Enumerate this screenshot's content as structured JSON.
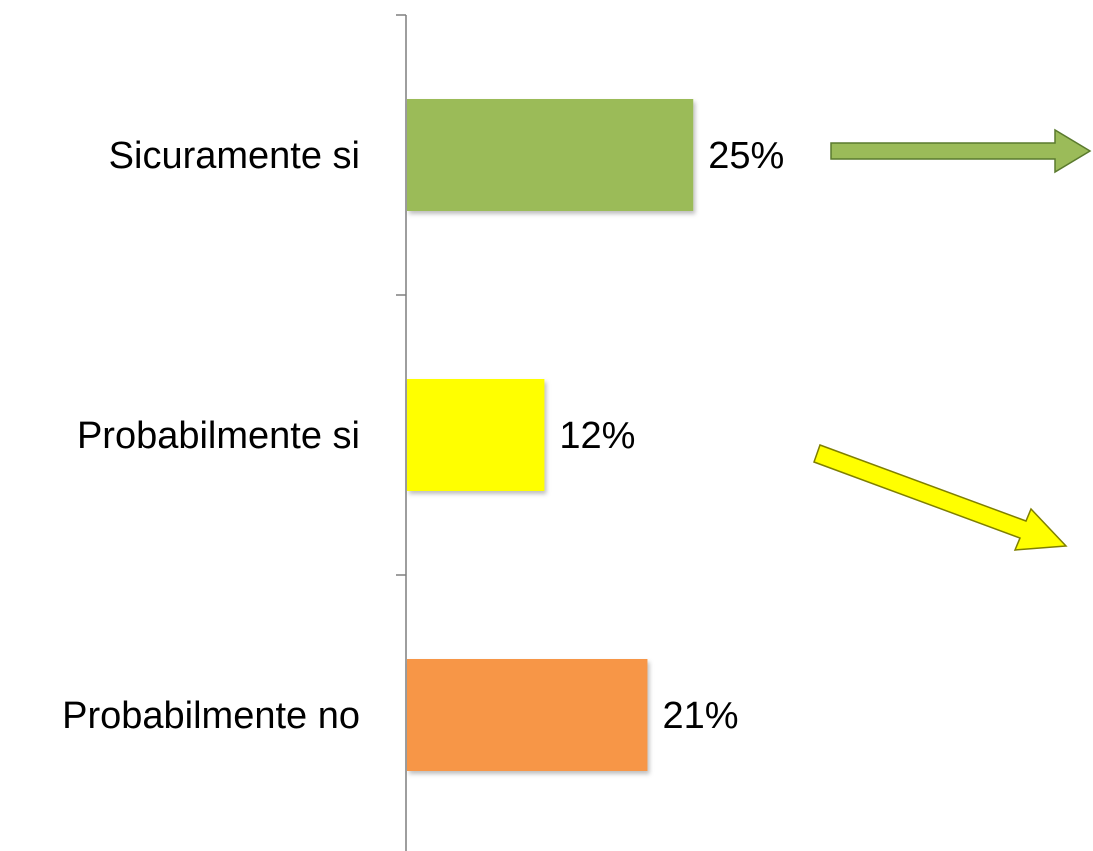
{
  "chart_data": {
    "type": "bar",
    "orientation": "horizontal",
    "categories": [
      "Sicuramente si",
      "Probabilmente si",
      "Probabilmente no"
    ],
    "values": [
      25,
      12,
      21
    ],
    "value_labels": [
      "25%",
      "12%",
      "21%"
    ],
    "colors": [
      "#9bbb59",
      "#ffff00",
      "#f79646"
    ],
    "xlim": [
      0,
      60
    ],
    "grid": false,
    "legend": "none",
    "annotations": [
      {
        "type": "arrow",
        "direction": "right",
        "color": "#9bbb59"
      },
      {
        "type": "arrow",
        "direction": "down-right",
        "color": "#ffff00"
      }
    ]
  }
}
